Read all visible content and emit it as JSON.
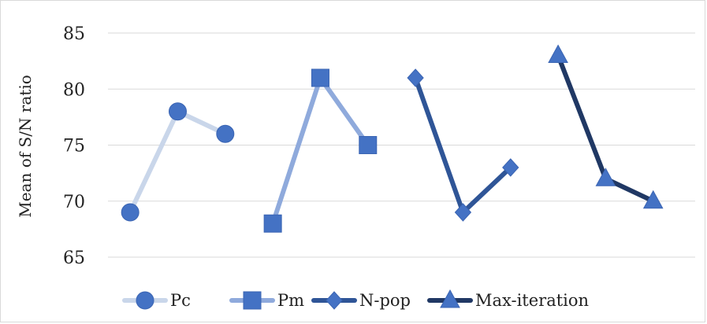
{
  "chart_data": {
    "type": "line",
    "title": "",
    "xlabel": "",
    "ylabel": "Mean of S/N ratio",
    "ylim": [
      65,
      85
    ],
    "yticks": [
      "65",
      "70",
      "75",
      "80",
      "85"
    ],
    "grid": true,
    "legend_position": "bottom",
    "series": [
      {
        "name": "Pc",
        "marker": "circle",
        "color": "#4472c4",
        "line_color": "#c9d6ea",
        "values": [
          69,
          78,
          76
        ]
      },
      {
        "name": "Pm",
        "marker": "square",
        "color": "#4472c4",
        "line_color": "#8faadc",
        "values": [
          68,
          81,
          75
        ]
      },
      {
        "name": "N-pop",
        "marker": "diamond",
        "color": "#4472c4",
        "line_color": "#2f5597",
        "values": [
          81,
          69,
          73
        ]
      },
      {
        "name": "Max-iteration",
        "marker": "triangle",
        "color": "#4472c4",
        "line_color": "#203864",
        "values": [
          83,
          72,
          70
        ]
      }
    ]
  }
}
